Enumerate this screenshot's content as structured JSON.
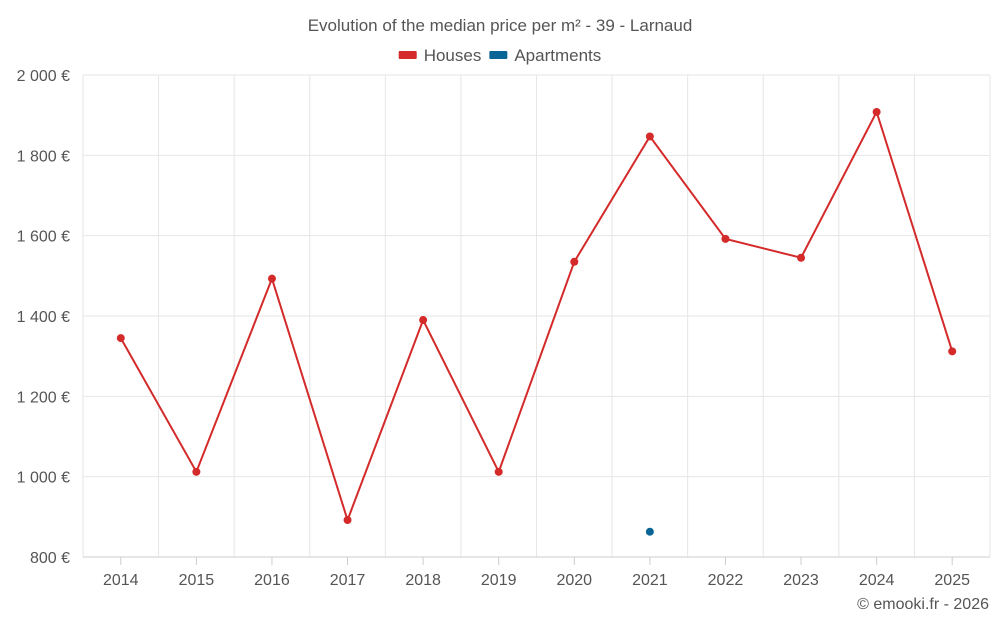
{
  "chart_data": {
    "type": "line",
    "title": "Evolution of the median price per m² - 39 - Larnaud",
    "categories": [
      "2014",
      "2015",
      "2016",
      "2017",
      "2018",
      "2019",
      "2020",
      "2021",
      "2022",
      "2023",
      "2024",
      "2025"
    ],
    "series": [
      {
        "name": "Houses",
        "color": "#d42a2a",
        "values": [
          1345,
          1012,
          1493,
          892,
          1390,
          1012,
          1535,
          1847,
          1592,
          1545,
          1908,
          1312
        ]
      },
      {
        "name": "Apartments",
        "color": "#0b6496",
        "values": [
          null,
          null,
          null,
          null,
          null,
          null,
          null,
          863,
          null,
          null,
          null,
          null
        ]
      }
    ],
    "ylim": [
      800,
      2000
    ],
    "yticks": [
      800,
      1000,
      1200,
      1400,
      1600,
      1800,
      2000
    ],
    "ytick_labels": [
      "800 €",
      "1 000 €",
      "1 200 €",
      "1 400 €",
      "1 600 €",
      "1 800 €",
      "2 000 €"
    ],
    "xlabel": "",
    "ylabel": "",
    "grid": true,
    "legend_position": "top-center"
  },
  "credit": "© emooki.fr - 2026"
}
